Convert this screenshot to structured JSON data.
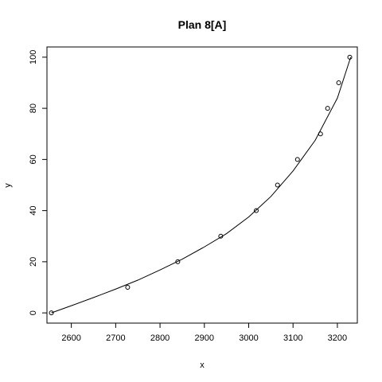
{
  "chart_data": {
    "type": "scatter",
    "title": "Plan 8[A]",
    "xlabel": "x",
    "ylabel": "y",
    "xlim": [
      2545,
      3245
    ],
    "ylim": [
      -4,
      104
    ],
    "x_ticks": [
      2600,
      2700,
      2800,
      2900,
      3000,
      3100,
      3200
    ],
    "y_ticks": [
      0,
      20,
      40,
      60,
      80,
      100
    ],
    "grid": false,
    "legend": "none",
    "series": [
      {
        "kind": "points",
        "marker": "open-circle",
        "x": [
          2555,
          2727,
          2840,
          2937,
          3017,
          3065,
          3110,
          3162,
          3178,
          3203,
          3228
        ],
        "y": [
          0,
          10,
          20,
          30,
          40,
          50,
          60,
          70,
          80,
          90,
          100
        ]
      },
      {
        "kind": "fitted-curve",
        "x": [
          2555,
          2600,
          2650,
          2700,
          2750,
          2800,
          2850,
          2900,
          2950,
          3000,
          3050,
          3100,
          3150,
          3200,
          3230
        ],
        "y": [
          0,
          2.8,
          6.0,
          9.3,
          12.8,
          16.8,
          21.0,
          25.8,
          31.0,
          37.5,
          45.5,
          55.5,
          67.5,
          84.0,
          100
        ]
      }
    ]
  }
}
